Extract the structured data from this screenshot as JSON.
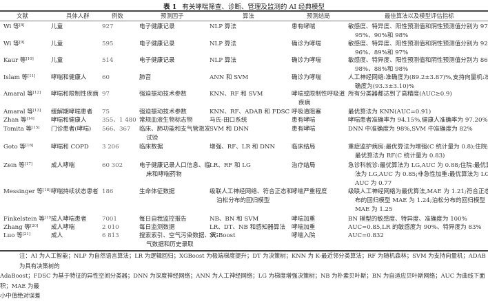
{
  "table": {
    "label": "表 1",
    "title": "有关哮喘筛查、诊断、管理及监测的 AI 经典模型",
    "headers": [
      "文献",
      "具体人群",
      "例数",
      "预测因子",
      "算法",
      "预测结局",
      "最佳算法以及模型评估指标"
    ],
    "rows": [
      {
        "ref": "Wi 等",
        "cite": "[8]",
        "population": "儿童",
        "n": "927",
        "predictors": [
          "电子健康记录"
        ],
        "algorithm": [
          "NLP 算法"
        ],
        "outcome": [
          "患有哮喘"
        ],
        "best": [
          "敏感度、特异度、阳性预测值和阴性预测值分别为 97%、",
          "95%、90%和 98%"
        ]
      },
      {
        "ref": "Wi 等",
        "cite": "[9]",
        "population": "儿童",
        "n": "595",
        "predictors": [
          "电子健康记录"
        ],
        "algorithm": [
          "NLP 算法"
        ],
        "outcome": [
          "确诊为哮喘"
        ],
        "best": [
          "敏感度、特异度、阳性预测值和阴性预测值分别为 92%、",
          "96%、89%和 97%"
        ]
      },
      {
        "ref": "Kaur 等",
        "cite": "[10]",
        "population": "儿童",
        "n": "514",
        "predictors": [
          "电子健康记录"
        ],
        "algorithm": [
          "NLP 算法"
        ],
        "outcome": [
          "确诊为哮喘"
        ],
        "best": [
          "敏感度、特异度、阳性预测值和阴性预测值分别为 86%、",
          "98%、88%和 98%"
        ]
      },
      {
        "ref": "Islam 等",
        "cite": "[11]",
        "population": "哮喘和健康人",
        "n": "60",
        "predictors": [
          "肺音"
        ],
        "algorithm": [
          "ANN 和 SVM"
        ],
        "outcome": [
          "确诊为哮喘"
        ],
        "best": [
          "人工神经网络:准确度为(89.2±3.87)%,支持向量机:准",
          "确度为(93.3±3.10)%"
        ]
      },
      {
        "ref": "Amaral 等",
        "cite": "[12]",
        "population": "哮喘和限制性疾病",
        "n": "97",
        "predictors": [
          "强迫振动技术参数"
        ],
        "algorithm": [
          "KNN、RF 和 SVM"
        ],
        "outcome": [
          "哮喘或限制性呼吸道",
          "疾病"
        ],
        "best": [
          "所有分类器都达到了高精度(AUC≥0.9)"
        ]
      },
      {
        "ref": "Amaral 等",
        "cite": "[13]",
        "population": "缓解期哮喘患者",
        "n": "75",
        "predictors": [
          "强迫振动技术参数"
        ],
        "algorithm": [
          "KNN、RF、ADAB 和 FDSC"
        ],
        "outcome": [
          "呼吸道阻塞"
        ],
        "best": [
          "最优算法为 KNN(AUC=0.91)"
        ]
      },
      {
        "ref": "Zhan 等",
        "cite": "[14]",
        "population": "哮喘和健康人",
        "n": "355、1 480",
        "predictors": [
          "常规血液生物标志物"
        ],
        "algorithm": [
          "马氏-田口系统"
        ],
        "outcome": [
          "患有哮喘"
        ],
        "best": [
          "哮喘患者准确率为 94.15%,健康人准确率为 97.20%"
        ]
      },
      {
        "ref": "Tomita 等",
        "cite": "[15]",
        "population": "门诊患者(哮喘)",
        "n": "566、367",
        "predictors": [
          "临床、肺功能和支气管激发",
          "试验"
        ],
        "algorithm": [
          "SVM 和 DNN"
        ],
        "outcome": [
          "患有哮喘"
        ],
        "best": [
          "DNN 中准确度为 98%,SVM 中准确度为 82%"
        ]
      },
      {
        "ref": "Goto 等",
        "cite": "[16]",
        "population": "哮喘和 COPD",
        "n": "3 206",
        "predictors": [
          "临床数据"
        ],
        "algorithm": [
          "增强、RF、LR 和 DNN"
        ],
        "outcome": [
          "临床结局"
        ],
        "best": [
          "重症监护病房:最优算法为增强(C 统计量为 0.8);住院:",
          "最优算法为 RF(C 统计量为 0.83)"
        ]
      },
      {
        "ref": "Zein 等",
        "cite": "[17]",
        "population": "成人哮喘",
        "n": "60 302",
        "predictors": [
          "电子健康记录人口信息、临",
          "床和哮喘药物"
        ],
        "algorithm": [
          "LR、RF 和 LG"
        ],
        "outcome": [
          "治疗结局"
        ],
        "best": [
          "急诊科就诊:最优算法为 LG,AUC 为 0.88;住院:最优算",
          "法为 LG,AUC 为 0.85;非急性加重:最优算法为 LG,",
          "AUC 为 0.77"
        ]
      },
      {
        "ref": "Messinger 等",
        "cite": "[18]",
        "population": "哮喘持续状态患者",
        "n": "186",
        "predictors": [
          "生命体征数据"
        ],
        "algorithm": [
          "级联人工神经网络、符合正态和",
          "泊松分布的回归模型"
        ],
        "outcome": [
          "哮喘严重程度"
        ],
        "best": [
          "级联人工神经网络为最优算法,MAE 为 1.21;符合正态分",
          "布的回归模型 MAE 为 1.24;泊松分布的回归模型",
          "MAE 为 1.25"
        ]
      },
      {
        "ref": "Finkelstein 等",
        "cite": "[19]",
        "population": "成人哮喘患者",
        "n": "7001",
        "predictors": [
          "每日自我监控报告"
        ],
        "algorithm": [
          "NB、BN 和 SVM"
        ],
        "outcome": [
          "哮喘加重"
        ],
        "best": [
          "BN 模型的敏感度、特异度、准确度为 100%"
        ]
      },
      {
        "ref": "Zhang 等",
        "cite": "[20]",
        "population": "成人哮喘",
        "n": "2 010",
        "predictors": [
          "每日监测数据"
        ],
        "algorithm": [
          "LR、DT、NB 和感知器算法"
        ],
        "outcome": [
          "哮喘加重"
        ],
        "best": [
          "AUC=0.85,LR 的敏感度为 90%、特异度为 83%"
        ]
      },
      {
        "ref": "Luo 等",
        "cite": "[21]",
        "population": "成人",
        "n": "6 813",
        "predictors": [
          "搜索索引、空气污染数据、天",
          "气数据和历史录取"
        ],
        "algorithm": [
          "XGBoost"
        ],
        "outcome": [
          "哮喘入院"
        ],
        "best": [
          "AUC=0.832"
        ]
      }
    ],
    "notes": [
      "注：AI 为人工智能；NLP 为自然语言算法；LR 为逻辑回归；XGBoost 为极端梯度提升；DT 为决策树；KNN 为 K-最近邻分类算法；RF 为随机森林；SVM 为支持向量机；ADAB 为具有决策树的",
      "AdaBoost；FDSC 为基于特征的异性空间分类器；DNN 为深度神经网络；ANN 为人工神经网络；LG 为梯度增强决策树；NB 为朴素贝叶斯；BN 为自适应贝叶斯网络；AUC 为曲线下面积；MAE 为最",
      "小中值绝对误差"
    ]
  }
}
